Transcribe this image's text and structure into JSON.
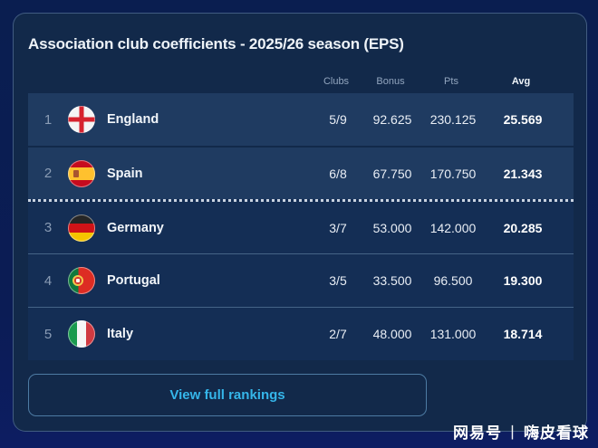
{
  "panel": {
    "title": "Association club coefficients - 2025/26 season (EPS)",
    "button_label": "View full rankings"
  },
  "table": {
    "headers": {
      "clubs": "Clubs",
      "bonus": "Bonus",
      "pts": "Pts",
      "avg": "Avg"
    },
    "rows": [
      {
        "rank": "1",
        "country": "England",
        "flag": "england",
        "clubs": "5/9",
        "bonus": "92.625",
        "pts": "230.125",
        "avg": "25.569",
        "highlighted": true
      },
      {
        "rank": "2",
        "country": "Spain",
        "flag": "spain",
        "clubs": "6/8",
        "bonus": "67.750",
        "pts": "170.750",
        "avg": "21.343",
        "highlighted": true
      },
      {
        "rank": "3",
        "country": "Germany",
        "flag": "germany",
        "clubs": "3/7",
        "bonus": "53.000",
        "pts": "142.000",
        "avg": "20.285",
        "highlighted": false
      },
      {
        "rank": "4",
        "country": "Portugal",
        "flag": "portugal",
        "clubs": "3/5",
        "bonus": "33.500",
        "pts": "96.500",
        "avg": "19.300",
        "highlighted": false
      },
      {
        "rank": "5",
        "country": "Italy",
        "flag": "italy",
        "clubs": "2/7",
        "bonus": "48.000",
        "pts": "131.000",
        "avg": "18.714",
        "highlighted": false
      }
    ]
  },
  "watermark": {
    "brand": "网易号",
    "divider": "丨",
    "account": "嗨皮看球"
  },
  "colors": {
    "page_background": "#0b1c55",
    "panel_background": "#12294a",
    "row_highlight_background": "#1f3b61",
    "row_background": "#142e55",
    "accent_link": "#35b6ea",
    "muted_text": "#93a6bf",
    "primary_text": "#f2f6fa",
    "cutoff_dotted_line": "#c9d3e0"
  }
}
